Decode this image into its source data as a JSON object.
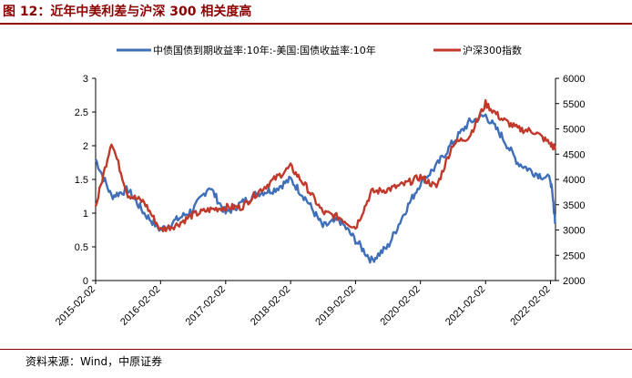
{
  "figure": {
    "title": "图 12：近年中美利差与沪深 300 相关度高",
    "source": "资料来源：Wind，中原证券"
  },
  "chart_data": {
    "type": "line",
    "x": [
      "2015-02-02",
      "2015-05-02",
      "2015-08-02",
      "2015-11-02",
      "2016-02-02",
      "2016-05-02",
      "2016-08-02",
      "2016-11-02",
      "2017-02-02",
      "2017-05-02",
      "2017-08-02",
      "2017-11-02",
      "2018-02-02",
      "2018-05-02",
      "2018-08-02",
      "2018-11-02",
      "2019-02-02",
      "2019-05-02",
      "2019-08-02",
      "2019-11-02",
      "2020-02-02",
      "2020-05-02",
      "2020-08-02",
      "2020-11-02",
      "2021-02-02",
      "2021-05-02",
      "2021-08-02",
      "2021-11-02",
      "2022-02-02",
      "2022-03-02"
    ],
    "xticks": [
      "2015-02-02",
      "2016-02-02",
      "2017-02-02",
      "2018-02-02",
      "2019-02-02",
      "2020-02-02",
      "2021-02-02",
      "2022-02-02"
    ],
    "series": [
      {
        "name": "中债国债到期收益率:10年:-美国:国债收益率:10年",
        "axis": "left",
        "color": "#3e6fb8",
        "values": [
          1.8,
          1.25,
          1.35,
          1.0,
          0.75,
          0.9,
          1.05,
          1.4,
          1.0,
          1.15,
          1.3,
          1.35,
          1.5,
          1.2,
          0.8,
          0.9,
          0.6,
          0.3,
          0.5,
          1.0,
          1.45,
          1.7,
          2.05,
          2.35,
          2.45,
          2.15,
          1.75,
          1.6,
          1.5,
          0.85
        ]
      },
      {
        "name": "沪深300指数",
        "axis": "right",
        "color": "#c0392b",
        "values": [
          3450,
          4750,
          3700,
          3550,
          3000,
          3100,
          3300,
          3400,
          3450,
          3450,
          3750,
          4000,
          4250,
          3850,
          3350,
          3250,
          3050,
          3750,
          3800,
          3900,
          4050,
          3850,
          4700,
          4850,
          5500,
          5200,
          5000,
          4950,
          4700,
          4600
        ]
      }
    ],
    "left_axis": {
      "ylim": [
        0,
        3
      ],
      "ticks": [
        "0",
        "0.5",
        "1",
        "1.5",
        "2",
        "2.5",
        "3"
      ]
    },
    "right_axis": {
      "ylim": [
        2000,
        6000
      ],
      "ticks": [
        "2000",
        "2500",
        "3000",
        "3500",
        "4000",
        "4500",
        "5000",
        "5500",
        "6000"
      ]
    },
    "legend_position": "top",
    "grid": false
  }
}
